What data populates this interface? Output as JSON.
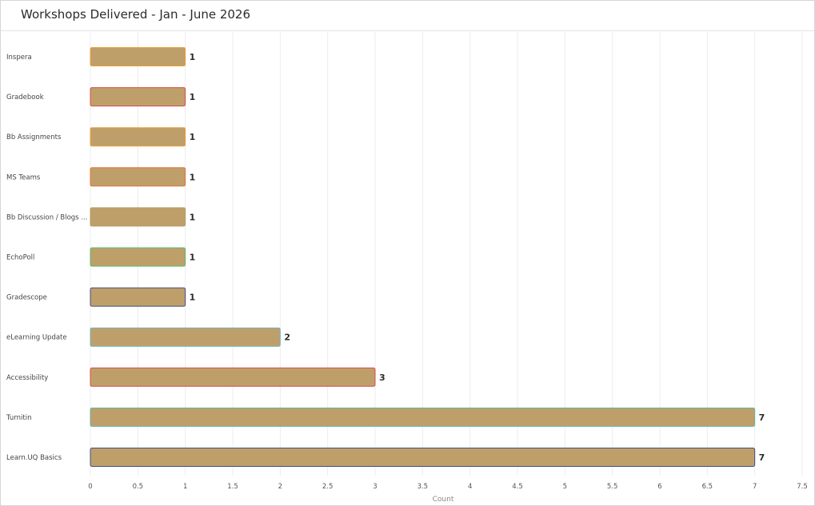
{
  "chart_data": {
    "type": "bar",
    "orientation": "horizontal",
    "title": "Workshops Delivered - Jan - June 2026",
    "xlabel": "Count",
    "ylabel": "",
    "xlim": [
      0,
      7.5
    ],
    "x_ticks": [
      "0",
      "0.5",
      "1",
      "1.5",
      "2",
      "2.5",
      "3",
      "3.5",
      "4",
      "4.5",
      "5",
      "5.5",
      "6",
      "6.5",
      "7",
      "7.5"
    ],
    "grid": true,
    "legend": "none",
    "bar_color": "#bf9f69",
    "categories": [
      "Inspera",
      "Gradebook",
      "Bb Assignments",
      "MS Teams",
      "Bb Discussion / Blogs ...",
      "EchoPoll",
      "Gradescope",
      "eLearning Update",
      "Accessibility",
      "Turnitin",
      "Learn.UQ Basics"
    ],
    "values": [
      1,
      1,
      1,
      1,
      1,
      1,
      1,
      2,
      3,
      7,
      7
    ],
    "edge_colors": [
      "#e8a13a",
      "#d94b4b",
      "#e8a13a",
      "#e8703a",
      "#b89a6a",
      "#4fbf6a",
      "#3d4f8a",
      "#6fb0c7",
      "#d94b4b",
      "#5fb7a8",
      "#3d4f8a"
    ]
  }
}
